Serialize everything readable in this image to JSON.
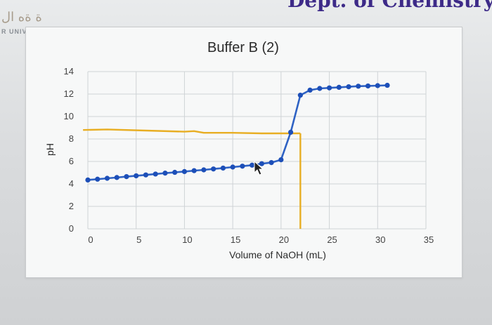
{
  "header": {
    "brand_text": "ة ةه ال",
    "brand_sub": "R UNIV",
    "dept_text": "Dept. of Chemistry"
  },
  "colors": {
    "series": "#2e62c4",
    "marker": "#1d4fb8",
    "annotation": "#e8ae23",
    "grid": "#cfd3d6"
  },
  "chart_data": {
    "type": "line",
    "title": "Buffer B (2)",
    "xlabel": "Volume of NaOH (mL)",
    "ylabel": "pH",
    "xlim": [
      0,
      35
    ],
    "ylim": [
      0,
      14
    ],
    "xticks": [
      0,
      5,
      10,
      15,
      20,
      25,
      30,
      35
    ],
    "yticks": [
      0,
      2,
      4,
      6,
      8,
      10,
      12,
      14
    ],
    "grid": true,
    "legend": "none",
    "series": [
      {
        "x": [
          0,
          1,
          2,
          3,
          4,
          5,
          6,
          7,
          8,
          9,
          10,
          11,
          12,
          13,
          14,
          15,
          16,
          17,
          18,
          19,
          20,
          21,
          22,
          23,
          24,
          25,
          26,
          27,
          28,
          29,
          30,
          31
        ],
        "y": [
          4.35,
          4.42,
          4.5,
          4.57,
          4.65,
          4.72,
          4.8,
          4.88,
          4.96,
          5.03,
          5.1,
          5.18,
          5.25,
          5.33,
          5.41,
          5.5,
          5.58,
          5.67,
          5.8,
          5.9,
          6.15,
          8.6,
          11.9,
          12.35,
          12.5,
          12.55,
          12.6,
          12.65,
          12.7,
          12.72,
          12.75,
          12.78
        ]
      }
    ],
    "annotations": [
      {
        "type": "line",
        "x": [
          -0.5,
          2,
          6,
          10,
          11,
          12,
          15,
          18,
          21,
          22
        ],
        "y": [
          8.8,
          8.85,
          8.75,
          8.65,
          8.7,
          8.55,
          8.55,
          8.5,
          8.5,
          8.5
        ]
      },
      {
        "type": "line",
        "x": [
          22,
          22
        ],
        "y": [
          8.5,
          0
        ]
      }
    ]
  }
}
